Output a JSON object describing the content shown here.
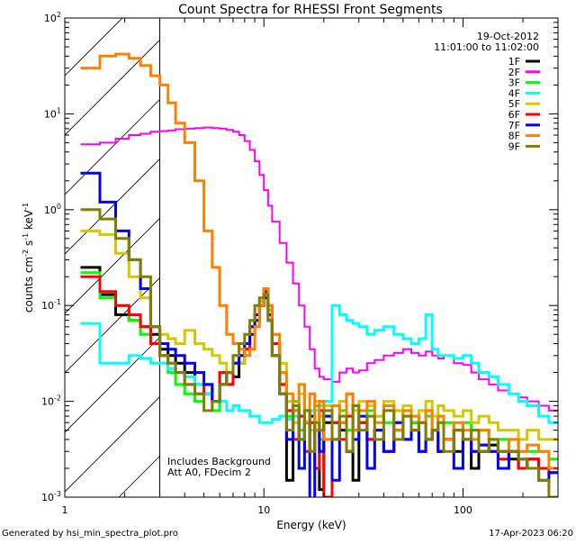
{
  "chart_data": {
    "type": "line",
    "title": "Count Spectra for RHESSI Front Segments",
    "xlabel": "Energy (keV)",
    "ylabel": "counts cm-2 s-1 keV-1",
    "xscale": "log",
    "yscale": "log",
    "xlim": [
      1,
      300
    ],
    "ylim": [
      0.001,
      100
    ],
    "x_tick_labels": [
      "1",
      "10",
      "100"
    ],
    "x_tick_values": [
      1,
      10,
      100
    ],
    "y_tick_labels": [
      {
        "base": "10",
        "exp": "-3",
        "value": 0.001
      },
      {
        "base": "10",
        "exp": "-2",
        "value": 0.01
      },
      {
        "base": "10",
        "exp": "-1",
        "value": 0.1
      },
      {
        "base": "10",
        "exp": "0",
        "value": 1
      },
      {
        "base": "10",
        "exp": "1",
        "value": 10
      },
      {
        "base": "10",
        "exp": "2",
        "value": 100
      }
    ],
    "hatched_range": [
      1,
      3
    ],
    "date": "19-Oct-2012",
    "time_range": "11:01:00 to 11:02:00",
    "annotations": [
      "Includes Background",
      "Att A0, FDecim 2"
    ],
    "legend_position": "top-right",
    "energy_edges": [
      1.2,
      1.5,
      1.8,
      2.1,
      2.4,
      2.7,
      3,
      3.3,
      3.6,
      4,
      4.5,
      5,
      5.5,
      6,
      6.5,
      7,
      7.5,
      8,
      8.5,
      9,
      9.5,
      10,
      10.5,
      11,
      12,
      13,
      14,
      15,
      16,
      17,
      18,
      19,
      20,
      22,
      24,
      26,
      28,
      30,
      33,
      36,
      40,
      45,
      50,
      55,
      60,
      65,
      70,
      75,
      80,
      90,
      100,
      110,
      120,
      135,
      150,
      170,
      190,
      210,
      240,
      270,
      300
    ],
    "series": [
      {
        "name": "1F",
        "color": "#000000",
        "values": [
          0.25,
          0.13,
          0.08,
          0.07,
          0.06,
          0.05,
          0.035,
          0.03,
          0.025,
          0.02,
          0.015,
          0.012,
          0.01,
          0.015,
          0.02,
          0.018,
          0.025,
          0.035,
          0.05,
          0.07,
          0.1,
          0.12,
          0.07,
          0.03,
          0.015,
          0.0015,
          0.008,
          0.004,
          0.006,
          0.007,
          0.005,
          0.0012,
          0.006,
          0.004,
          0.005,
          0.003,
          0.0015,
          0.006,
          0.004,
          0.005,
          0.003,
          0.005,
          0.004,
          0.006,
          0.003,
          0.004,
          0.005,
          0.003,
          0.004,
          0.003,
          0.004,
          0.002,
          0.003,
          0.0035,
          0.003,
          0.0025,
          0.002,
          0.0025,
          0.002,
          0.002
        ]
      },
      {
        "name": "2F",
        "color": "#ff00ff",
        "values": [
          4.8,
          5,
          5.5,
          6,
          6.2,
          6.5,
          6.6,
          6.7,
          6.9,
          7,
          7.1,
          7.2,
          7.1,
          7,
          6.8,
          6.5,
          6,
          5.2,
          4.2,
          3.2,
          2.3,
          1.6,
          1.1,
          0.75,
          0.45,
          0.28,
          0.17,
          0.1,
          0.06,
          0.035,
          0.022,
          0.018,
          0.017,
          0.016,
          0.02,
          0.022,
          0.02,
          0.021,
          0.025,
          0.027,
          0.03,
          0.032,
          0.035,
          0.032,
          0.03,
          0.033,
          0.03,
          0.028,
          0.03,
          0.025,
          0.024,
          0.02,
          0.017,
          0.015,
          0.013,
          0.012,
          0.011,
          0.01,
          0.009,
          0.008
        ]
      },
      {
        "name": "3F",
        "color": "#00ff00",
        "values": [
          0.22,
          0.12,
          0.1,
          0.07,
          0.05,
          0.04,
          0.03,
          0.02,
          0.015,
          0.012,
          0.01,
          0.015,
          0.008,
          0.02,
          0.015,
          0.025,
          0.03,
          0.04,
          0.06,
          0.08,
          0.1,
          0.15,
          0.09,
          0.04,
          0.015,
          0.007,
          0.01,
          0.005,
          0.008,
          0.006,
          0.009,
          0.004,
          0.007,
          0.006,
          0.008,
          0.005,
          0.009,
          0.006,
          0.008,
          0.007,
          0.006,
          0.008,
          0.007,
          0.006,
          0.008,
          0.007,
          0.005,
          0.007,
          0.006,
          0.005,
          0.006,
          0.005,
          0.005,
          0.004,
          0.004,
          0.004,
          0.003,
          0.003,
          0.003,
          0.0025
        ]
      },
      {
        "name": "4F",
        "color": "#00ffff",
        "values": [
          0.065,
          0.025,
          0.025,
          0.03,
          0.028,
          0.025,
          0.025,
          0.022,
          0.02,
          0.018,
          0.015,
          0.012,
          0.01,
          0.01,
          0.008,
          0.009,
          0.008,
          0.008,
          0.007,
          0.007,
          0.006,
          0.006,
          0.006,
          0.0065,
          0.007,
          0.0065,
          0.007,
          0.007,
          0.008,
          0.008,
          0.008,
          0.009,
          0.01,
          0.1,
          0.08,
          0.07,
          0.065,
          0.06,
          0.05,
          0.055,
          0.06,
          0.05,
          0.045,
          0.04,
          0.045,
          0.08,
          0.035,
          0.03,
          0.03,
          0.028,
          0.03,
          0.025,
          0.02,
          0.018,
          0.015,
          0.012,
          0.01,
          0.009,
          0.007,
          0.006
        ]
      },
      {
        "name": "5F",
        "color": "#d4c800",
        "values": [
          0.6,
          0.55,
          0.35,
          0.2,
          0.12,
          0.06,
          0.05,
          0.045,
          0.04,
          0.055,
          0.04,
          0.035,
          0.03,
          0.025,
          0.02,
          0.03,
          0.025,
          0.04,
          0.06,
          0.08,
          0.11,
          0.14,
          0.09,
          0.05,
          0.025,
          0.01,
          0.006,
          0.012,
          0.008,
          0.005,
          0.01,
          0.007,
          0.009,
          0.006,
          0.01,
          0.012,
          0.008,
          0.01,
          0.009,
          0.007,
          0.01,
          0.008,
          0.009,
          0.007,
          0.008,
          0.01,
          0.007,
          0.009,
          0.008,
          0.007,
          0.008,
          0.006,
          0.007,
          0.006,
          0.005,
          0.005,
          0.004,
          0.005,
          0.004,
          0.004
        ]
      },
      {
        "name": "6F",
        "color": "#ff0000",
        "values": [
          0.2,
          0.14,
          0.1,
          0.08,
          0.06,
          0.04,
          0.03,
          0.025,
          0.02,
          0.015,
          0.012,
          0.015,
          0.01,
          0.02,
          0.015,
          0.025,
          0.03,
          0.035,
          0.06,
          0.08,
          0.1,
          0.15,
          0.1,
          0.04,
          0.015,
          0.008,
          0.004,
          0.007,
          0.003,
          0.006,
          0.002,
          0.008,
          0.001,
          0.006,
          0.004,
          0.007,
          0.005,
          0.006,
          0.004,
          0.005,
          0.003,
          0.006,
          0.004,
          0.005,
          0.006,
          0.004,
          0.005,
          0.003,
          0.004,
          0.005,
          0.004,
          0.003,
          0.0035,
          0.003,
          0.0025,
          0.003,
          0.002,
          0.0025,
          0.002,
          0.0018
        ]
      },
      {
        "name": "7F",
        "color": "#0000ff",
        "values": [
          2.4,
          1.2,
          0.6,
          0.3,
          0.15,
          0.06,
          0.04,
          0.035,
          0.03,
          0.025,
          0.02,
          0.015,
          0.01,
          0.015,
          0.02,
          0.025,
          0.03,
          0.04,
          0.06,
          0.08,
          0.1,
          0.14,
          0.08,
          0.03,
          0.012,
          0.004,
          0.008,
          0.002,
          0.006,
          0.0009,
          0.005,
          0.003,
          0.007,
          0.0015,
          0.006,
          0.003,
          0.004,
          0.007,
          0.002,
          0.005,
          0.003,
          0.006,
          0.004,
          0.005,
          0.003,
          0.004,
          0.005,
          0.003,
          0.004,
          0.002,
          0.004,
          0.003,
          0.0035,
          0.003,
          0.002,
          0.003,
          0.0025,
          0.002,
          0.0015,
          0.0018
        ]
      },
      {
        "name": "8F",
        "color": "#ff8000",
        "values": [
          30,
          40,
          42,
          38,
          32,
          25,
          20,
          13,
          8,
          5,
          2,
          0.6,
          0.25,
          0.1,
          0.05,
          0.04,
          0.035,
          0.03,
          0.035,
          0.06,
          0.1,
          0.15,
          0.1,
          0.05,
          0.02,
          0.012,
          0.008,
          0.015,
          0.006,
          0.012,
          0.005,
          0.01,
          0.004,
          0.009,
          0.006,
          0.012,
          0.005,
          0.008,
          0.01,
          0.006,
          0.009,
          0.005,
          0.008,
          0.007,
          0.006,
          0.008,
          0.005,
          0.007,
          0.004,
          0.006,
          0.005,
          0.004,
          0.005,
          0.004,
          0.003,
          0.004,
          0.003,
          0.0035,
          0.003,
          0.002
        ]
      },
      {
        "name": "9F",
        "color": "#808000",
        "values": [
          1.0,
          0.8,
          0.5,
          0.3,
          0.2,
          0.06,
          0.03,
          0.025,
          0.02,
          0.015,
          0.012,
          0.008,
          0.01,
          0.015,
          0.02,
          0.03,
          0.04,
          0.05,
          0.07,
          0.1,
          0.12,
          0.13,
          0.07,
          0.03,
          0.012,
          0.005,
          0.009,
          0.004,
          0.008,
          0.003,
          0.006,
          0.005,
          0.008,
          0.004,
          0.007,
          0.003,
          0.009,
          0.005,
          0.007,
          0.004,
          0.008,
          0.004,
          0.007,
          0.005,
          0.006,
          0.004,
          0.005,
          0.006,
          0.003,
          0.005,
          0.004,
          0.005,
          0.003,
          0.004,
          0.003,
          0.003,
          0.0025,
          0.002,
          0.0015,
          0.001
        ]
      }
    ]
  },
  "footer": {
    "generated_by": "Generated by hsi_min_spectra_plot.pro",
    "timestamp": "17-Apr-2023 06:20"
  }
}
